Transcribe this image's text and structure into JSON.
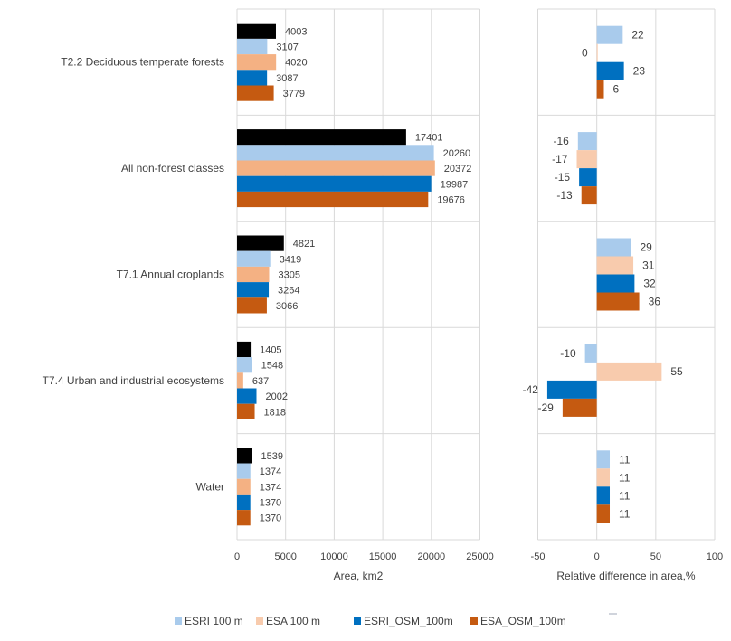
{
  "chart_data": [
    {
      "type": "bar",
      "orientation": "horizontal",
      "categories": [
        "T2.2 Deciduous temperate forests",
        "All non-forest classes",
        "T7.1 Annual croplands",
        "T7.4 Urban and industrial ecosystems",
        "Water"
      ],
      "series": [
        {
          "values": [
            4003,
            17401,
            4821,
            1405,
            1539
          ],
          "color": "#000000"
        },
        {
          "name": "ESRI 100 m",
          "values": [
            3107,
            20260,
            3419,
            1548,
            1374
          ],
          "color": "#A9CBEC"
        },
        {
          "name": "ESA 100 m",
          "values": [
            4020,
            20372,
            3305,
            637,
            1374
          ],
          "color": "#F4B183"
        },
        {
          "name": "ESRI_OSM_100m",
          "values": [
            3087,
            19987,
            3264,
            2002,
            1370
          ],
          "color": "#0070C0"
        },
        {
          "name": "ESA_OSM_100m",
          "values": [
            3779,
            19676,
            3066,
            1818,
            1370
          ],
          "color": "#C55A11"
        }
      ],
      "xlabel": "Area, km2",
      "xlim": [
        0,
        25000
      ],
      "xticks": [
        "0",
        "5000",
        "10000",
        "15000",
        "20000",
        "25000"
      ],
      "grid": true
    },
    {
      "type": "bar",
      "orientation": "horizontal",
      "categories": [
        "T2.2 Deciduous temperate forests",
        "All non-forest classes",
        "T7.1 Annual croplands",
        "T7.4 Urban and industrial ecosystems",
        "Water"
      ],
      "series": [
        {
          "name": "ESRI 100 m",
          "values": [
            22,
            -16,
            29,
            -10,
            11
          ],
          "color": "#A9CBEC"
        },
        {
          "name": "ESA 100 m",
          "values": [
            0,
            -17,
            31,
            55,
            11
          ],
          "color": "#F8CBAD"
        },
        {
          "name": "ESRI_OSM_100m",
          "values": [
            23,
            -15,
            32,
            -42,
            11
          ],
          "color": "#0070C0"
        },
        {
          "name": "ESA_OSM_100m",
          "values": [
            6,
            -13,
            36,
            -29,
            11
          ],
          "color": "#C55A11"
        }
      ],
      "xlabel": "Relative difference in area,%",
      "xlim": [
        -50,
        100
      ],
      "xticks": [
        "-50",
        "0",
        "50",
        "100"
      ],
      "grid": true
    }
  ],
  "legend": {
    "placement": "bottom",
    "items": [
      {
        "label": "ESRI 100 m",
        "color": "#A9CBEC"
      },
      {
        "label": "ESA 100 m",
        "color": "#F8CBAD"
      },
      {
        "label": "ESRI_OSM_100m",
        "color": "#0070C0"
      },
      {
        "label": "ESA_OSM_100m",
        "color": "#C55A11"
      }
    ]
  }
}
